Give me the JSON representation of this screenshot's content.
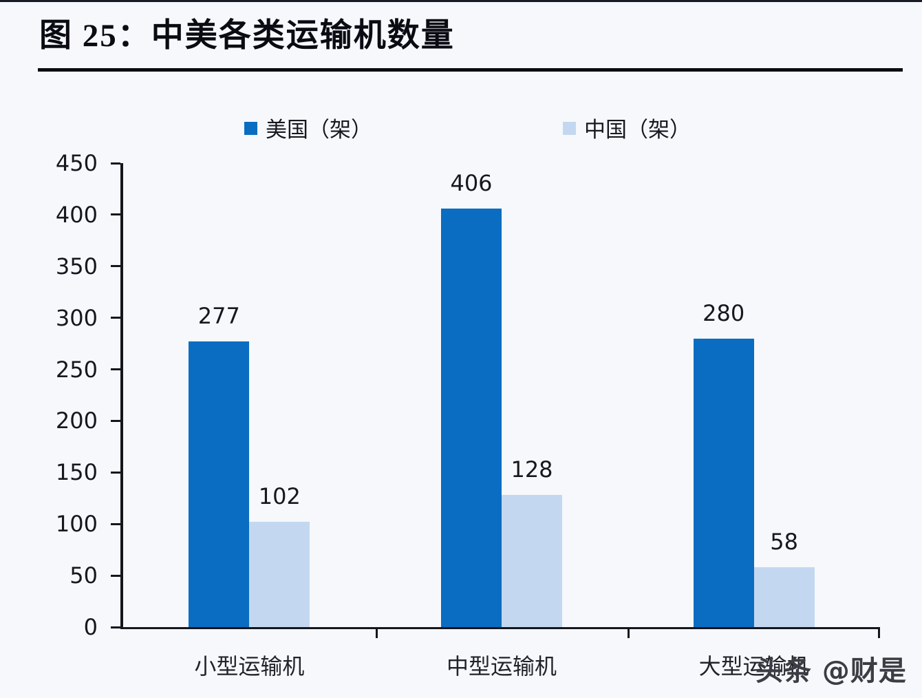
{
  "header": {
    "title": "图 25：中美各类运输机数量"
  },
  "watermark": {
    "text": "头条 @财是"
  },
  "colors": {
    "us_series": "#0a6dc1",
    "china_series": "#c3d8f0",
    "axis": "#15151d",
    "title": "#0b0b13",
    "background": "#f6f8fb",
    "watermark": "#3c3c44"
  },
  "chart_data": {
    "type": "bar",
    "title": "图 25：中美各类运输机数量",
    "categories": [
      "小型运输机",
      "中型运输机",
      "大型运输机"
    ],
    "series": [
      {
        "name": "美国（架）",
        "color": "#0a6dc1",
        "values": [
          277,
          406,
          280
        ]
      },
      {
        "name": "中国（架）",
        "color": "#c3d8f0",
        "values": [
          102,
          128,
          58
        ]
      }
    ],
    "xlabel": "",
    "ylabel": "",
    "ylim": [
      0,
      450
    ],
    "ytick_step": 50,
    "grid": false,
    "legend_position": "top",
    "value_labels": true
  }
}
